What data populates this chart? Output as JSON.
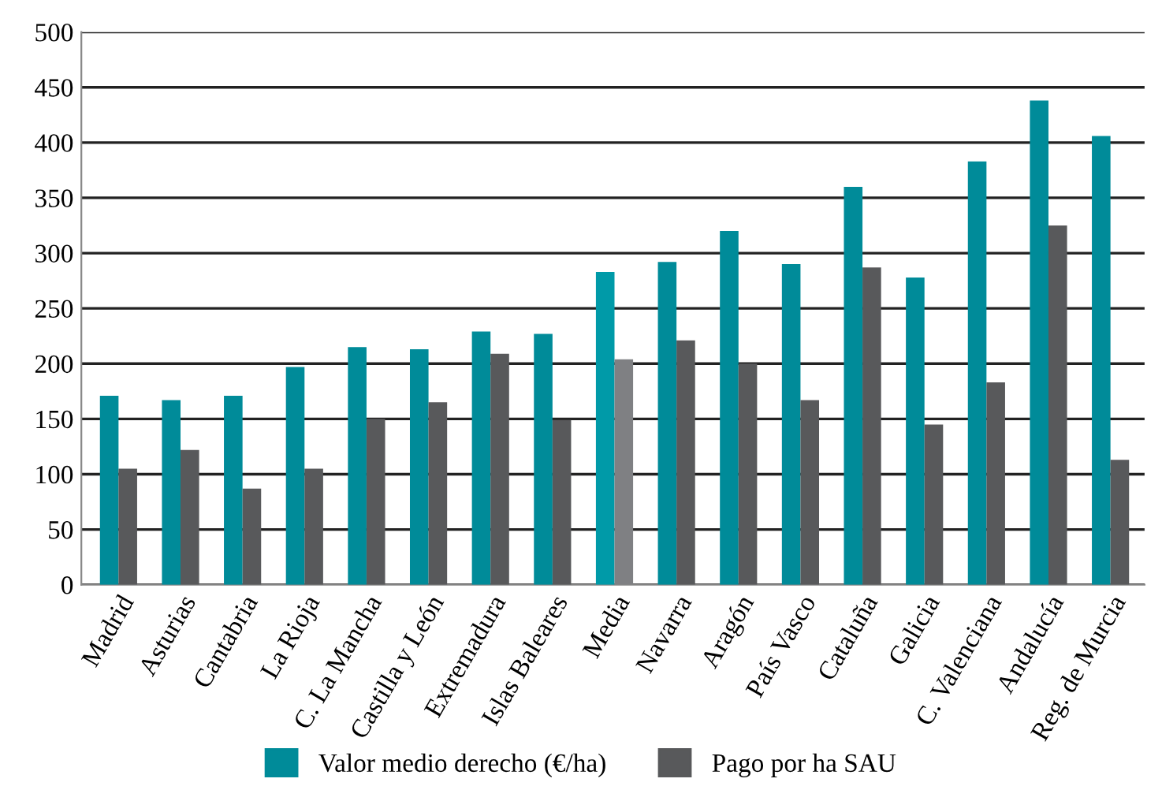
{
  "chart_data": {
    "type": "bar",
    "categories": [
      "Madrid",
      "Asturias",
      "Cantabria",
      "La Rioja",
      "C. La Mancha",
      "Castilla y León",
      "Extremadura",
      "Islas Baleares",
      "Media",
      "Navarra",
      "Aragón",
      "País Vasco",
      "Cataluña",
      "Galicia",
      "C. Valenciana",
      "Andalucía",
      "Reg. de Murcia"
    ],
    "series": [
      {
        "name": "Valor medio derecho (€/ha)",
        "color": "#008b99",
        "colors": [
          "#008b99",
          "#008b99",
          "#008b99",
          "#008b99",
          "#008b99",
          "#008b99",
          "#008b99",
          "#008b99",
          "#009aa8",
          "#008b99",
          "#008b99",
          "#008b99",
          "#008b99",
          "#008b99",
          "#008b99",
          "#008b99",
          "#008b99"
        ],
        "values": [
          171,
          167,
          171,
          197,
          215,
          213,
          229,
          227,
          283,
          292,
          320,
          290,
          360,
          278,
          383,
          438,
          406
        ]
      },
      {
        "name": "Pago por ha SAU",
        "color": "#58595b",
        "colors": [
          "#58595b",
          "#58595b",
          "#58595b",
          "#58595b",
          "#58595b",
          "#58595b",
          "#58595b",
          "#58595b",
          "#7f8083",
          "#58595b",
          "#58595b",
          "#58595b",
          "#58595b",
          "#58595b",
          "#58595b",
          "#58595b",
          "#58595b"
        ],
        "values": [
          105,
          122,
          87,
          105,
          150,
          165,
          209,
          149,
          204,
          221,
          200,
          167,
          287,
          145,
          183,
          325,
          113
        ]
      }
    ],
    "ylim": [
      0,
      500
    ],
    "yticks": [
      0,
      50,
      100,
      150,
      200,
      250,
      300,
      350,
      400,
      450,
      500
    ],
    "grid": "y",
    "legend": "bottom"
  }
}
